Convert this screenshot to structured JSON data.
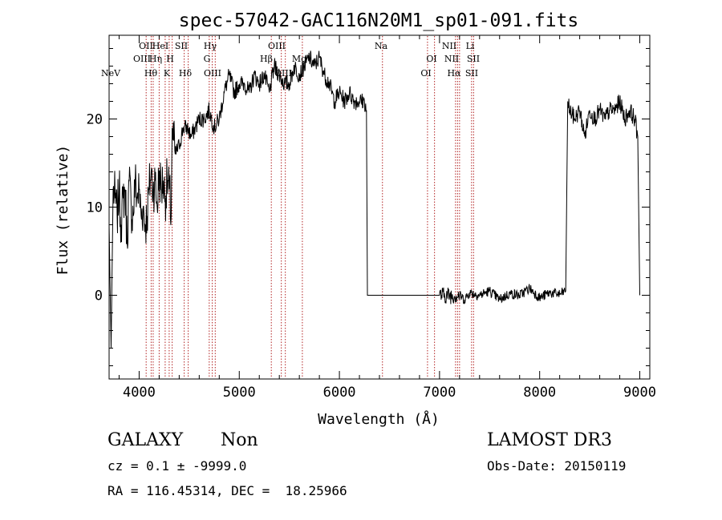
{
  "chart_data": {
    "type": "line",
    "title": "spec-57042-GAC116N20M1_sp01-091.fits",
    "xlabel": "Wavelength (Å)",
    "ylabel": "Flux (relative)",
    "xlim": [
      3700,
      9100
    ],
    "ylim": [
      -9.5,
      29.5
    ],
    "xticks": [
      4000,
      5000,
      6000,
      7000,
      8000,
      9000
    ],
    "yticks": [
      0,
      10,
      20
    ],
    "grid": false,
    "line_color": "#000000",
    "marker_color": "#b22222",
    "spectrum": [
      [
        3700,
        8
      ],
      [
        3720,
        -6
      ],
      [
        3740,
        12
      ],
      [
        3760,
        11
      ],
      [
        3780,
        9
      ],
      [
        3800,
        12
      ],
      [
        3820,
        8
      ],
      [
        3840,
        11
      ],
      [
        3860,
        12
      ],
      [
        3880,
        6
      ],
      [
        3900,
        13
      ],
      [
        3920,
        10
      ],
      [
        3940,
        9
      ],
      [
        3960,
        13
      ],
      [
        3980,
        11
      ],
      [
        4000,
        12
      ],
      [
        4020,
        9
      ],
      [
        4040,
        10
      ],
      [
        4060,
        8
      ],
      [
        4080,
        9
      ],
      [
        4100,
        12
      ],
      [
        4120,
        14
      ],
      [
        4140,
        12
      ],
      [
        4160,
        13
      ],
      [
        4180,
        10
      ],
      [
        4200,
        14
      ],
      [
        4220,
        12
      ],
      [
        4240,
        13
      ],
      [
        4260,
        11
      ],
      [
        4280,
        13
      ],
      [
        4300,
        12
      ],
      [
        4320,
        9
      ],
      [
        4330,
        19
      ],
      [
        4360,
        16
      ],
      [
        4400,
        17
      ],
      [
        4440,
        19
      ],
      [
        4480,
        19
      ],
      [
        4520,
        18
      ],
      [
        4560,
        19
      ],
      [
        4600,
        20
      ],
      [
        4650,
        20
      ],
      [
        4700,
        21
      ],
      [
        4750,
        19
      ],
      [
        4800,
        20
      ],
      [
        4850,
        23
      ],
      [
        4900,
        25
      ],
      [
        4950,
        23
      ],
      [
        5000,
        24
      ],
      [
        5050,
        24
      ],
      [
        5100,
        23
      ],
      [
        5150,
        25
      ],
      [
        5200,
        24
      ],
      [
        5250,
        25
      ],
      [
        5300,
        23
      ],
      [
        5350,
        26
      ],
      [
        5400,
        25
      ],
      [
        5450,
        24
      ],
      [
        5500,
        24
      ],
      [
        5550,
        26
      ],
      [
        5600,
        25
      ],
      [
        5650,
        26
      ],
      [
        5700,
        27
      ],
      [
        5750,
        26
      ],
      [
        5800,
        27
      ],
      [
        5850,
        25
      ],
      [
        5900,
        24
      ],
      [
        5950,
        22
      ],
      [
        6000,
        23
      ],
      [
        6050,
        22
      ],
      [
        6100,
        23
      ],
      [
        6150,
        22
      ],
      [
        6200,
        22
      ],
      [
        6250,
        22
      ],
      [
        6270,
        21
      ],
      [
        6280,
        0
      ],
      [
        7000,
        0
      ],
      [
        7200,
        0
      ],
      [
        7250,
        -0.5
      ],
      [
        7300,
        0.3
      ],
      [
        7400,
        0
      ],
      [
        7500,
        0.5
      ],
      [
        7600,
        -0.5
      ],
      [
        7700,
        0.2
      ],
      [
        7800,
        0
      ],
      [
        7900,
        0.8
      ],
      [
        8000,
        -0.3
      ],
      [
        8100,
        0.3
      ],
      [
        8200,
        0.1
      ],
      [
        8260,
        0.5
      ],
      [
        8280,
        22
      ],
      [
        8300,
        21
      ],
      [
        8350,
        20
      ],
      [
        8400,
        21
      ],
      [
        8450,
        18
      ],
      [
        8500,
        21
      ],
      [
        8550,
        20
      ],
      [
        8600,
        21
      ],
      [
        8650,
        20
      ],
      [
        8700,
        21
      ],
      [
        8750,
        21
      ],
      [
        8800,
        22
      ],
      [
        8850,
        20
      ],
      [
        8900,
        21
      ],
      [
        8950,
        20
      ],
      [
        8980,
        18
      ],
      [
        9000,
        0
      ]
    ],
    "lines_above": [
      {
        "label": "NeV",
        "x": 3426,
        "row": 3
      },
      {
        "label": "OII",
        "x": 3727,
        "row": 0
      },
      {
        "label": "OIII",
        "x": 3869,
        "row": 1
      },
      {
        "label": "Hθ",
        "x": 3889,
        "row": 2
      },
      {
        "label": "Hη",
        "x": 3970,
        "row": 1
      },
      {
        "label": "HeI",
        "x": 3889,
        "row": 0
      },
      {
        "label": "K",
        "x": 3934,
        "row": 2
      },
      {
        "label": "H",
        "x": 3969,
        "row": 1
      },
      {
        "label": "SII",
        "x": 4072,
        "row": 0
      },
      {
        "label": "Hδ",
        "x": 4102,
        "row": 2
      },
      {
        "label": "Hγ",
        "x": 4341,
        "row": 0
      },
      {
        "label": "G",
        "x": 4304,
        "row": 1
      },
      {
        "label": "OIII",
        "x": 4363,
        "row": 2
      },
      {
        "label": "Hβ",
        "x": 4861,
        "row": 1
      },
      {
        "label": "OIII",
        "x": 4959,
        "row": 0
      },
      {
        "label": "OIII",
        "x": 5007,
        "row": 2
      },
      {
        "label": "Mg",
        "x": 5175,
        "row": 1
      },
      {
        "label": "Na",
        "x": 5893,
        "row": 0
      },
      {
        "label": "OI",
        "x": 6300,
        "row": 2
      },
      {
        "label": "OI",
        "x": 6364,
        "row": 1
      },
      {
        "label": "NII",
        "x": 6548,
        "row": 0
      },
      {
        "label": "NII",
        "x": 6583,
        "row": 1
      },
      {
        "label": "Hα",
        "x": 6563,
        "row": 2
      },
      {
        "label": "Li",
        "x": 6708,
        "row": 0
      },
      {
        "label": "SII",
        "x": 6716,
        "row": 1
      },
      {
        "label": "SII",
        "x": 6731,
        "row": 2
      }
    ],
    "marker_lines_x": [
      4070,
      4120,
      4140,
      4200,
      4260,
      4300,
      4330,
      4450,
      4490,
      4700,
      4730,
      4760,
      5320,
      5420,
      5460,
      5630,
      6430,
      6880,
      6950,
      7160,
      7180,
      7200,
      7320,
      7340
    ]
  },
  "info": {
    "object_type": "GALAXY",
    "subclass": "Non",
    "survey": "LAMOST DR3",
    "redshift_line": "cz = 0.1 ± -9999.0",
    "obs_date_line": "Obs-Date: 20150119",
    "coords_line": "RA = 116.45314, DEC =  18.25966"
  }
}
